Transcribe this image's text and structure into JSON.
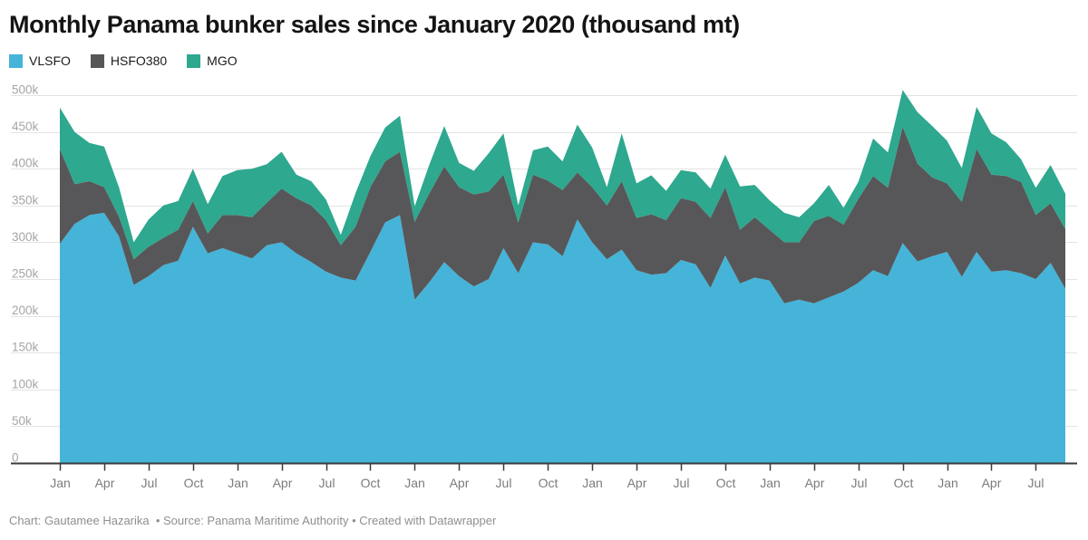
{
  "title": "Monthly Panama bunker sales since January 2020 (thousand mt)",
  "legend": [
    {
      "label": "VLSFO",
      "color": "#45b4d8"
    },
    {
      "label": "HSFO380",
      "color": "#575759"
    },
    {
      "label": "MGO",
      "color": "#2ea88e"
    }
  ],
  "footer": {
    "text": "Chart: Gautamee Hazarika  • Source: Panama Maritime Authority • Created with Datawrapper"
  },
  "chart_data": {
    "type": "area",
    "stacked": true,
    "title": "Monthly Panama bunker sales since January 2020 (thousand mt)",
    "unit": "thousand mt",
    "x_start": "2020-01",
    "x_end": "2025-09",
    "x_tick_every_months": 3,
    "x_tick_label_cycle": [
      "Jan",
      "Apr",
      "Jul",
      "Oct"
    ],
    "y_ticks": [
      0,
      50,
      100,
      150,
      200,
      250,
      300,
      350,
      400,
      450,
      500
    ],
    "y_tick_suffix": "k",
    "ylim": [
      0,
      500
    ],
    "grid": true,
    "legend_position": "top-left",
    "colors": {
      "grid": "#e3e3e3",
      "axis": "#3a3a3a",
      "x_labels": "#7c7c7c",
      "y_labels": "#a5a5a5"
    },
    "series": [
      {
        "name": "VLSFO",
        "color": "#45b4d8",
        "values": [
          298,
          325,
          337,
          340,
          308,
          242,
          254,
          269,
          275,
          321,
          285,
          292,
          285,
          278,
          296,
          300,
          285,
          273,
          260,
          252,
          248,
          287,
          327,
          337,
          222,
          246,
          273,
          254,
          240,
          250,
          292,
          258,
          300,
          297,
          281,
          331,
          300,
          277,
          290,
          262,
          256,
          258,
          276,
          270,
          238,
          282,
          244,
          252,
          248,
          217,
          222,
          217,
          225,
          233,
          245,
          262,
          254,
          299,
          274,
          281,
          287,
          253,
          287,
          260,
          262,
          258,
          250,
          272,
          237
        ]
      },
      {
        "name": "HSFO380",
        "color": "#575759",
        "values": [
          129,
          54,
          46,
          35,
          27,
          35,
          40,
          37,
          42,
          35,
          27,
          45,
          52,
          56,
          58,
          73,
          75,
          77,
          70,
          44,
          73,
          88,
          83,
          86,
          106,
          121,
          130,
          121,
          125,
          119,
          100,
          69,
          92,
          87,
          90,
          64,
          75,
          73,
          93,
          71,
          82,
          72,
          84,
          85,
          95,
          93,
          73,
          82,
          69,
          83,
          78,
          112,
          111,
          91,
          114,
          128,
          120,
          158,
          133,
          107,
          93,
          102,
          140,
          132,
          128,
          124,
          87,
          81,
          81
        ]
      },
      {
        "name": "MGO",
        "color": "#2ea88e",
        "values": [
          56,
          71,
          52,
          55,
          40,
          23,
          37,
          44,
          39,
          44,
          40,
          53,
          61,
          66,
          52,
          50,
          32,
          33,
          28,
          14,
          46,
          42,
          46,
          49,
          21,
          39,
          55,
          33,
          32,
          52,
          56,
          23,
          33,
          46,
          39,
          65,
          54,
          25,
          65,
          47,
          53,
          40,
          38,
          40,
          40,
          44,
          59,
          44,
          40,
          40,
          34,
          24,
          42,
          23,
          23,
          51,
          48,
          50,
          70,
          70,
          58,
          46,
          57,
          56,
          46,
          31,
          37,
          52,
          48
        ]
      }
    ]
  }
}
